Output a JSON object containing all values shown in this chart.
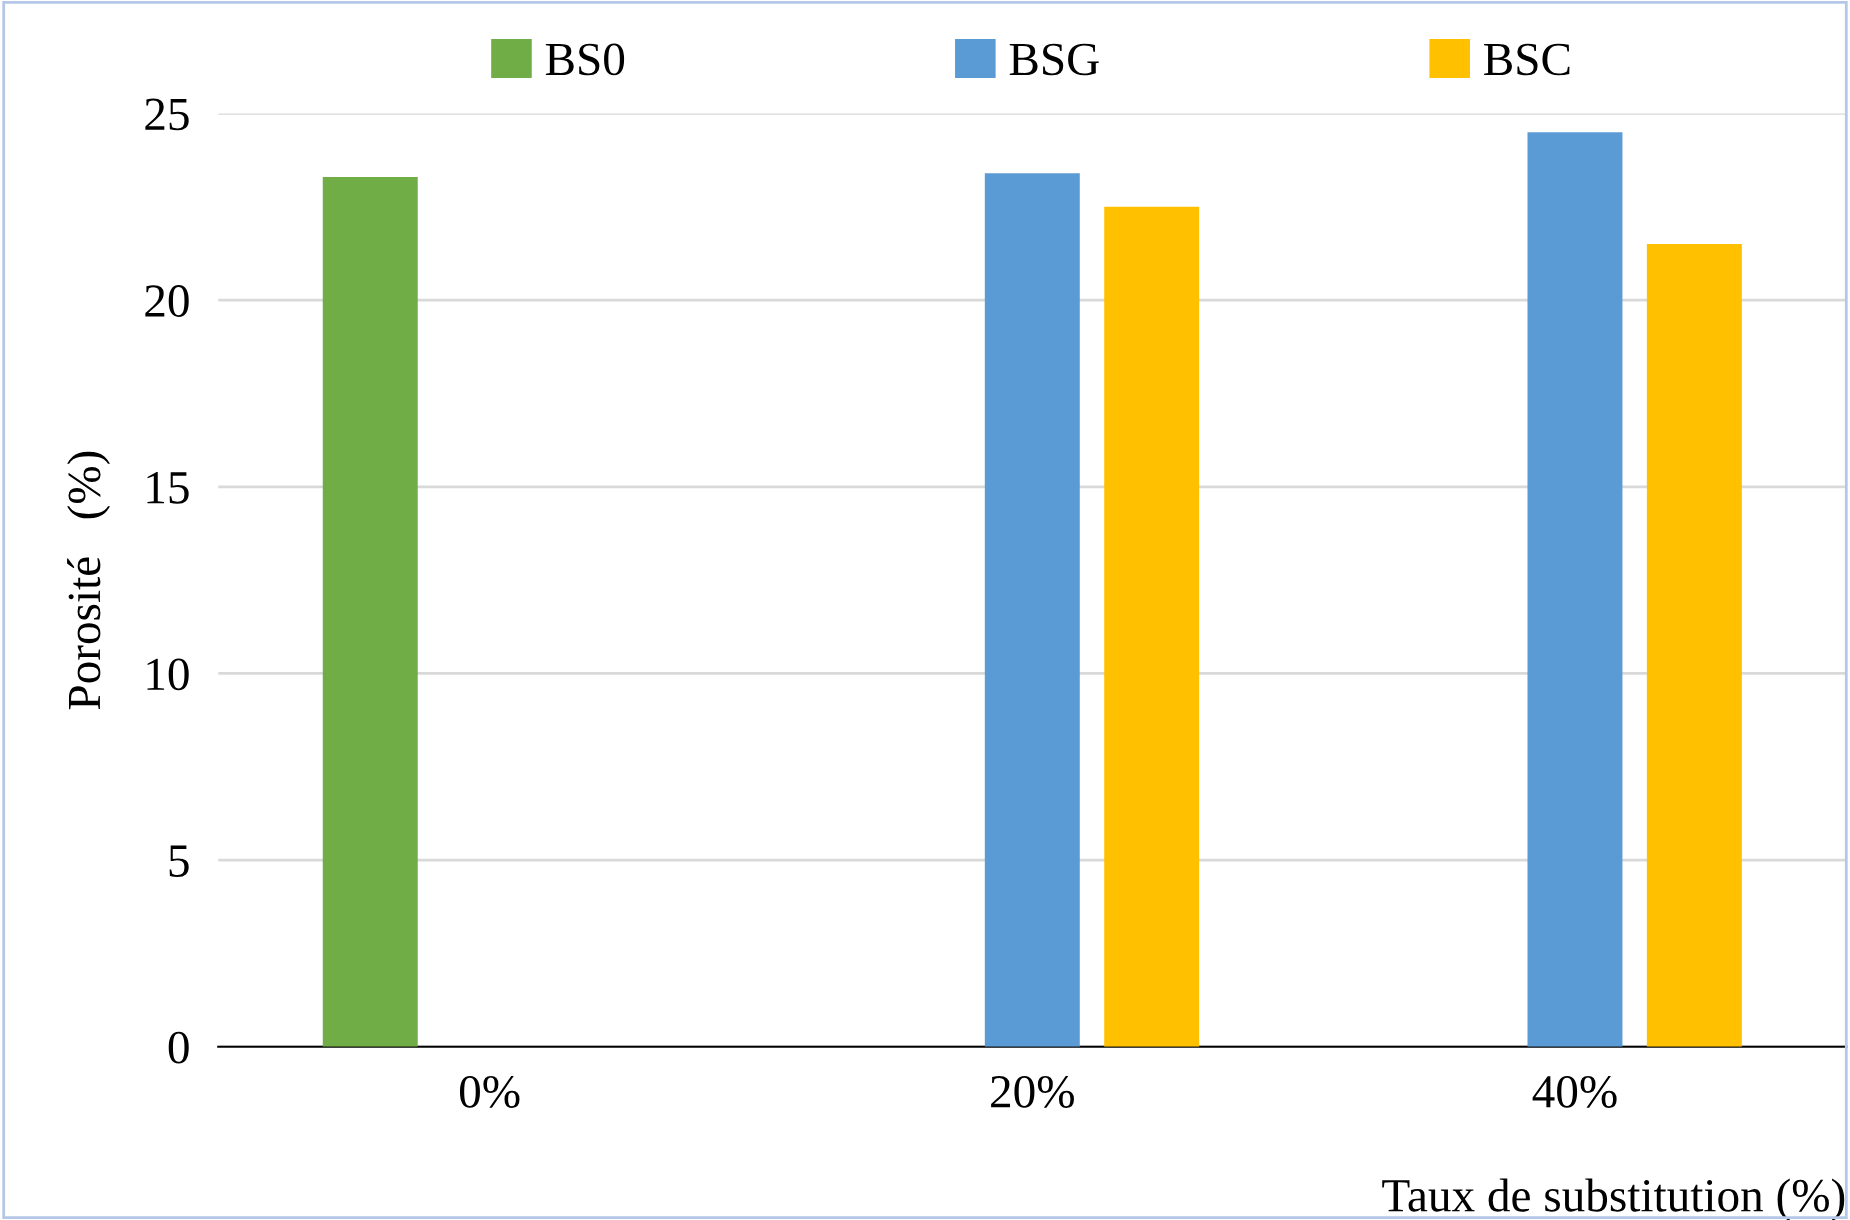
{
  "chart_data": {
    "type": "bar",
    "categories": [
      "0%",
      "20%",
      "40%"
    ],
    "series": [
      {
        "name": "BS0",
        "color": "#70ad47",
        "values": [
          23.3,
          null,
          null
        ]
      },
      {
        "name": "BSG",
        "color": "#5b9bd5",
        "values": [
          null,
          23.4,
          24.5
        ]
      },
      {
        "name": "BSC",
        "color": "#ffc000",
        "values": [
          null,
          22.5,
          21.5
        ]
      }
    ],
    "xlabel": "Taux de substitution (%)",
    "ylabel": "Porosité   (%)",
    "ylim": [
      0,
      25
    ],
    "yticks": [
      0,
      5,
      10,
      15,
      20,
      25
    ],
    "grid": "y",
    "legend": "top"
  }
}
